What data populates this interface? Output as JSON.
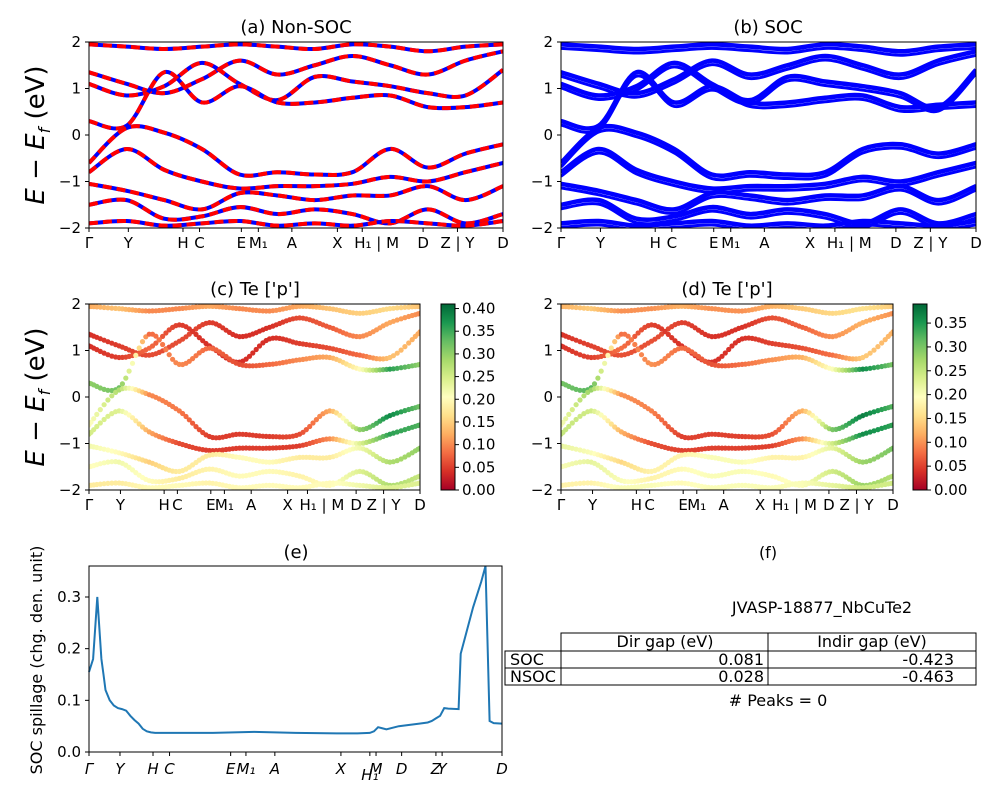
{
  "figure": {
    "ylabel_band": "E − E",
    "ylabel_sub": "f",
    "ylabel_unit": " (eV)",
    "ylabel_spillage": "SOC spillage (chg. den. unit)",
    "colors": {
      "nonsoc_red": "#ff0000",
      "nonsoc_blue": "#0000ff",
      "soc_blue": "#0000ff",
      "spillage_line": "#1f77b4"
    }
  },
  "panel_a": {
    "title": "(a) Non-SOC"
  },
  "panel_b": {
    "title": "(b) SOC"
  },
  "panel_c": {
    "title": "(c)  Te ['p']"
  },
  "panel_d": {
    "title": "(d) Te ['p']"
  },
  "panel_e": {
    "title": "(e)"
  },
  "panel_f": {
    "title": "(f)",
    "material": "JVASP-18877_NbCuTe2",
    "table": {
      "headers": [
        "",
        "Dir gap (eV)",
        "Indir gap (eV)"
      ],
      "rows": [
        {
          "label": "SOC",
          "dir": "0.081",
          "indir": "-0.423"
        },
        {
          "label": "NSOC",
          "dir": "0.028",
          "indir": "-0.463"
        }
      ]
    },
    "peaks": "# Peaks = 0"
  },
  "colorbar_c": {
    "ticks": [
      "0.00",
      "0.05",
      "0.10",
      "0.15",
      "0.20",
      "0.25",
      "0.30",
      "0.35",
      "0.40"
    ],
    "max": 0.41
  },
  "colorbar_d": {
    "ticks": [
      "0.00",
      "0.05",
      "0.10",
      "0.15",
      "0.20",
      "0.25",
      "0.30",
      "0.35"
    ],
    "max": 0.39
  },
  "chart_data": [
    {
      "type": "line",
      "title": "(a) Non-SOC",
      "ylabel": "E − E_f (eV)",
      "ylim": [
        -2,
        2
      ],
      "yticks": [
        "-2",
        "-1",
        "0",
        "1",
        "2"
      ],
      "kpath_ticks": [
        "Γ",
        "Y",
        "H",
        "C",
        "E",
        "M₁",
        "A",
        "X",
        "H₁ | M",
        "D",
        "Z | Y",
        "D"
      ],
      "series": [
        {
          "values": [
            1.95,
            1.9,
            1.85,
            1.9,
            1.95,
            1.9,
            1.85,
            1.95,
            1.9,
            1.8,
            1.9,
            1.95
          ]
        },
        {
          "values": [
            1.35,
            1.1,
            0.9,
            1.2,
            1.6,
            1.3,
            1.5,
            1.7,
            1.5,
            1.3,
            1.6,
            1.8
          ]
        },
        {
          "values": [
            1.1,
            0.85,
            1.05,
            1.55,
            1.1,
            0.75,
            1.25,
            1.15,
            1.05,
            0.9,
            0.85,
            1.4
          ]
        },
        {
          "values": [
            0.3,
            0.2,
            1.35,
            0.7,
            1.05,
            0.7,
            0.7,
            0.8,
            0.85,
            0.6,
            0.6,
            0.7
          ]
        },
        {
          "values": [
            -0.6,
            0.15,
            0.05,
            -0.3,
            -0.85,
            -0.8,
            -0.85,
            -0.8,
            -0.3,
            -0.7,
            -0.4,
            -0.2
          ]
        },
        {
          "values": [
            -0.8,
            -0.3,
            -0.75,
            -1.0,
            -1.15,
            -1.1,
            -1.1,
            -1.05,
            -0.9,
            -1.0,
            -0.8,
            -0.6
          ]
        },
        {
          "values": [
            -1.05,
            -1.2,
            -1.4,
            -1.6,
            -1.25,
            -1.3,
            -1.4,
            -1.3,
            -1.3,
            -1.1,
            -1.4,
            -1.1
          ]
        },
        {
          "values": [
            -1.5,
            -1.4,
            -1.8,
            -1.75,
            -1.55,
            -1.7,
            -1.6,
            -1.7,
            -1.9,
            -1.6,
            -1.9,
            -1.7
          ]
        },
        {
          "values": [
            -1.9,
            -1.85,
            -1.95,
            -1.9,
            -1.85,
            -1.95,
            -1.9,
            -1.95,
            -1.85,
            -1.9,
            -1.95,
            -1.85
          ]
        }
      ]
    },
    {
      "type": "line",
      "title": "(b) SOC",
      "ylabel": "",
      "ylim": [
        -2,
        2
      ],
      "yticks": [
        "-2",
        "-1",
        "0",
        "1",
        "2"
      ],
      "kpath_ticks": [
        "Γ",
        "Y",
        "H",
        "C",
        "E",
        "M₁",
        "A",
        "X",
        "H₁ | M",
        "D",
        "Z | Y",
        "D"
      ],
      "series": [
        {
          "values": [
            1.95,
            1.9,
            1.85,
            1.9,
            1.95,
            1.9,
            1.85,
            1.95,
            1.9,
            1.8,
            1.9,
            1.95
          ]
        },
        {
          "values": [
            1.35,
            1.1,
            0.9,
            1.2,
            1.6,
            1.3,
            1.5,
            1.7,
            1.5,
            1.3,
            1.6,
            1.8
          ]
        },
        {
          "values": [
            1.1,
            0.85,
            1.05,
            1.55,
            1.1,
            0.75,
            1.25,
            1.15,
            1.05,
            0.9,
            0.6,
            1.4
          ]
        },
        {
          "values": [
            0.3,
            0.2,
            1.35,
            0.7,
            1.05,
            0.7,
            0.7,
            0.8,
            0.85,
            0.6,
            0.65,
            0.7
          ]
        },
        {
          "values": [
            -0.6,
            0.15,
            0.05,
            -0.3,
            -0.85,
            -0.8,
            -0.85,
            -0.8,
            -0.3,
            -0.2,
            -0.4,
            -0.2
          ]
        },
        {
          "values": [
            -0.8,
            -0.3,
            -0.75,
            -1.0,
            -1.15,
            -1.1,
            -1.1,
            -1.05,
            -0.9,
            -1.0,
            -0.8,
            -0.6
          ]
        },
        {
          "values": [
            -1.05,
            -1.2,
            -1.4,
            -1.6,
            -1.25,
            -1.3,
            -1.4,
            -1.3,
            -1.3,
            -1.1,
            -1.4,
            -1.1
          ]
        },
        {
          "values": [
            -1.5,
            -1.4,
            -1.8,
            -1.75,
            -1.55,
            -1.7,
            -1.6,
            -1.7,
            -1.9,
            -1.6,
            -1.9,
            -1.7
          ]
        },
        {
          "values": [
            -1.9,
            -1.85,
            -1.95,
            -1.9,
            -1.85,
            -1.95,
            -1.9,
            -1.95,
            -1.85,
            -1.9,
            -1.95,
            -1.85
          ]
        }
      ]
    },
    {
      "type": "scatter",
      "title": "(c)  Te ['p']",
      "ylabel": "E − E_f (eV)",
      "ylim": [
        -2,
        2
      ],
      "yticks": [
        "-2",
        "-1",
        "0",
        "1",
        "2"
      ],
      "kpath_ticks": [
        "Γ",
        "Y",
        "H",
        "C",
        "E",
        "M₁",
        "A",
        "X",
        "H₁ | M",
        "D",
        "Z | Y",
        "D"
      ],
      "colorbar_range": [
        0,
        0.41
      ],
      "series": [
        {
          "values": [
            1.95,
            1.9,
            1.85,
            1.9,
            1.95,
            1.9,
            1.85,
            1.95,
            1.9,
            1.8,
            1.9,
            1.95
          ],
          "weights": [
            0.12,
            0.14,
            0.1,
            0.1,
            0.12,
            0.1,
            0.1,
            0.12,
            0.14,
            0.15,
            0.16,
            0.14
          ]
        },
        {
          "values": [
            1.35,
            1.1,
            0.9,
            1.2,
            1.6,
            1.3,
            1.5,
            1.7,
            1.5,
            1.3,
            1.6,
            1.8
          ],
          "weights": [
            0.04,
            0.05,
            0.06,
            0.06,
            0.05,
            0.04,
            0.04,
            0.06,
            0.07,
            0.1,
            0.12,
            0.1
          ]
        },
        {
          "values": [
            1.1,
            0.85,
            1.05,
            1.55,
            1.1,
            0.75,
            1.25,
            1.15,
            1.05,
            0.9,
            0.85,
            1.4
          ],
          "weights": [
            0.04,
            0.05,
            0.08,
            0.05,
            0.04,
            0.04,
            0.04,
            0.05,
            0.06,
            0.08,
            0.14,
            0.12
          ]
        },
        {
          "values": [
            0.3,
            0.2,
            1.35,
            0.7,
            1.05,
            0.7,
            0.7,
            0.8,
            0.85,
            0.6,
            0.6,
            0.7
          ],
          "weights": [
            0.3,
            0.32,
            0.08,
            0.1,
            0.08,
            0.06,
            0.08,
            0.1,
            0.12,
            0.2,
            0.36,
            0.3
          ]
        },
        {
          "values": [
            -0.6,
            0.15,
            0.05,
            -0.3,
            -0.85,
            -0.8,
            -0.85,
            -0.8,
            -0.3,
            -0.7,
            -0.4,
            -0.2
          ],
          "weights": [
            0.2,
            0.28,
            0.1,
            0.09,
            0.05,
            0.05,
            0.05,
            0.06,
            0.12,
            0.3,
            0.38,
            0.32
          ]
        },
        {
          "values": [
            -0.8,
            -0.3,
            -0.75,
            -1.0,
            -1.15,
            -1.1,
            -1.1,
            -1.05,
            -0.9,
            -1.0,
            -0.8,
            -0.6
          ],
          "weights": [
            0.25,
            0.24,
            0.12,
            0.06,
            0.05,
            0.05,
            0.05,
            0.05,
            0.1,
            0.24,
            0.36,
            0.34
          ]
        },
        {
          "values": [
            -1.05,
            -1.2,
            -1.4,
            -1.6,
            -1.25,
            -1.3,
            -1.4,
            -1.3,
            -1.3,
            -1.1,
            -1.4,
            -1.1
          ],
          "weights": [
            0.22,
            0.2,
            0.15,
            0.18,
            0.18,
            0.2,
            0.2,
            0.18,
            0.18,
            0.22,
            0.28,
            0.3
          ]
        },
        {
          "values": [
            -1.5,
            -1.4,
            -1.8,
            -1.75,
            -1.55,
            -1.7,
            -1.6,
            -1.7,
            -1.9,
            -1.6,
            -1.9,
            -1.7
          ],
          "weights": [
            0.2,
            0.22,
            0.2,
            0.18,
            0.19,
            0.2,
            0.2,
            0.19,
            0.2,
            0.24,
            0.28,
            0.26
          ]
        },
        {
          "values": [
            -1.9,
            -1.85,
            -1.95,
            -1.9,
            -1.85,
            -1.95,
            -1.9,
            -1.95,
            -1.85,
            -1.9,
            -1.95,
            -1.85
          ],
          "weights": [
            0.18,
            0.18,
            0.2,
            0.2,
            0.19,
            0.2,
            0.2,
            0.2,
            0.2,
            0.22,
            0.24,
            0.24
          ]
        }
      ]
    },
    {
      "type": "scatter",
      "title": "(d) Te ['p']",
      "ylabel": "",
      "ylim": [
        -2,
        2
      ],
      "yticks": [
        "-2",
        "-1",
        "0",
        "1",
        "2"
      ],
      "kpath_ticks": [
        "Γ",
        "Y",
        "H",
        "C",
        "E",
        "M₁",
        "A",
        "X",
        "H₁ | M",
        "D",
        "Z | Y",
        "D"
      ],
      "colorbar_range": [
        0,
        0.39
      ],
      "series": [
        {
          "values": [
            1.95,
            1.9,
            1.85,
            1.9,
            1.95,
            1.9,
            1.85,
            1.95,
            1.9,
            1.8,
            1.9,
            1.95
          ],
          "weights": [
            0.12,
            0.14,
            0.1,
            0.1,
            0.12,
            0.1,
            0.1,
            0.12,
            0.14,
            0.15,
            0.16,
            0.14
          ]
        },
        {
          "values": [
            1.35,
            1.1,
            0.9,
            1.2,
            1.6,
            1.3,
            1.5,
            1.7,
            1.5,
            1.3,
            1.6,
            1.8
          ],
          "weights": [
            0.04,
            0.05,
            0.06,
            0.06,
            0.05,
            0.04,
            0.04,
            0.06,
            0.07,
            0.1,
            0.12,
            0.1
          ]
        },
        {
          "values": [
            1.1,
            0.85,
            1.05,
            1.55,
            1.1,
            0.75,
            1.25,
            1.15,
            1.05,
            0.9,
            0.85,
            1.4
          ],
          "weights": [
            0.04,
            0.05,
            0.08,
            0.05,
            0.04,
            0.04,
            0.04,
            0.05,
            0.06,
            0.08,
            0.14,
            0.12
          ]
        },
        {
          "values": [
            0.3,
            0.2,
            1.35,
            0.7,
            1.05,
            0.7,
            0.7,
            0.8,
            0.85,
            0.6,
            0.6,
            0.7
          ],
          "weights": [
            0.3,
            0.32,
            0.08,
            0.1,
            0.08,
            0.06,
            0.08,
            0.1,
            0.12,
            0.2,
            0.36,
            0.3
          ]
        },
        {
          "values": [
            -0.6,
            0.15,
            0.05,
            -0.3,
            -0.85,
            -0.8,
            -0.85,
            -0.8,
            -0.3,
            -0.7,
            -0.4,
            -0.2
          ],
          "weights": [
            0.2,
            0.28,
            0.1,
            0.09,
            0.05,
            0.05,
            0.05,
            0.06,
            0.12,
            0.3,
            0.37,
            0.32
          ]
        },
        {
          "values": [
            -0.8,
            -0.3,
            -0.75,
            -1.0,
            -1.15,
            -1.1,
            -1.1,
            -1.05,
            -0.9,
            -1.0,
            -0.8,
            -0.6
          ],
          "weights": [
            0.25,
            0.24,
            0.12,
            0.06,
            0.05,
            0.05,
            0.05,
            0.05,
            0.1,
            0.24,
            0.36,
            0.34
          ]
        },
        {
          "values": [
            -1.05,
            -1.2,
            -1.4,
            -1.6,
            -1.25,
            -1.3,
            -1.4,
            -1.3,
            -1.3,
            -1.1,
            -1.4,
            -1.1
          ],
          "weights": [
            0.22,
            0.2,
            0.15,
            0.18,
            0.18,
            0.2,
            0.2,
            0.18,
            0.18,
            0.22,
            0.28,
            0.3
          ]
        },
        {
          "values": [
            -1.5,
            -1.4,
            -1.8,
            -1.75,
            -1.55,
            -1.7,
            -1.6,
            -1.7,
            -1.9,
            -1.6,
            -1.9,
            -1.7
          ],
          "weights": [
            0.2,
            0.22,
            0.2,
            0.18,
            0.19,
            0.2,
            0.2,
            0.19,
            0.2,
            0.24,
            0.28,
            0.26
          ]
        },
        {
          "values": [
            -1.9,
            -1.85,
            -1.95,
            -1.9,
            -1.85,
            -1.95,
            -1.9,
            -1.95,
            -1.85,
            -1.9,
            -1.95,
            -1.85
          ],
          "weights": [
            0.18,
            0.18,
            0.2,
            0.2,
            0.19,
            0.2,
            0.2,
            0.2,
            0.2,
            0.22,
            0.24,
            0.24
          ]
        }
      ]
    },
    {
      "type": "line",
      "title": "(e)",
      "ylabel": "SOC spillage (chg. den. unit)",
      "ylim": [
        0,
        0.36
      ],
      "yticks": [
        "0.0",
        "0.1",
        "0.2",
        "0.3"
      ],
      "kpath_ticks": [
        "Γ",
        "Y",
        "H",
        "C",
        "E",
        "M₁",
        "A",
        "X",
        "H₁",
        "M",
        "D",
        "Z",
        "Y",
        "D"
      ],
      "x": [
        0,
        0.01,
        0.02,
        0.03,
        0.035,
        0.04,
        0.05,
        0.06,
        0.07,
        0.08,
        0.09,
        0.1,
        0.11,
        0.12,
        0.13,
        0.14,
        0.15,
        0.16,
        0.17,
        0.2,
        0.3,
        0.35,
        0.4,
        0.5,
        0.6,
        0.65,
        0.68,
        0.69,
        0.7,
        0.72,
        0.75,
        0.8,
        0.82,
        0.83,
        0.84,
        0.85,
        0.86,
        0.87,
        0.895,
        0.9,
        0.93,
        0.95,
        0.96,
        0.97,
        0.98,
        1.0
      ],
      "values": [
        0.155,
        0.18,
        0.3,
        0.18,
        0.15,
        0.12,
        0.1,
        0.09,
        0.085,
        0.083,
        0.08,
        0.07,
        0.062,
        0.055,
        0.045,
        0.04,
        0.038,
        0.037,
        0.037,
        0.037,
        0.037,
        0.038,
        0.039,
        0.037,
        0.036,
        0.036,
        0.037,
        0.04,
        0.048,
        0.044,
        0.05,
        0.055,
        0.057,
        0.06,
        0.065,
        0.07,
        0.085,
        0.084,
        0.083,
        0.19,
        0.28,
        0.33,
        0.36,
        0.06,
        0.056,
        0.055
      ]
    }
  ]
}
